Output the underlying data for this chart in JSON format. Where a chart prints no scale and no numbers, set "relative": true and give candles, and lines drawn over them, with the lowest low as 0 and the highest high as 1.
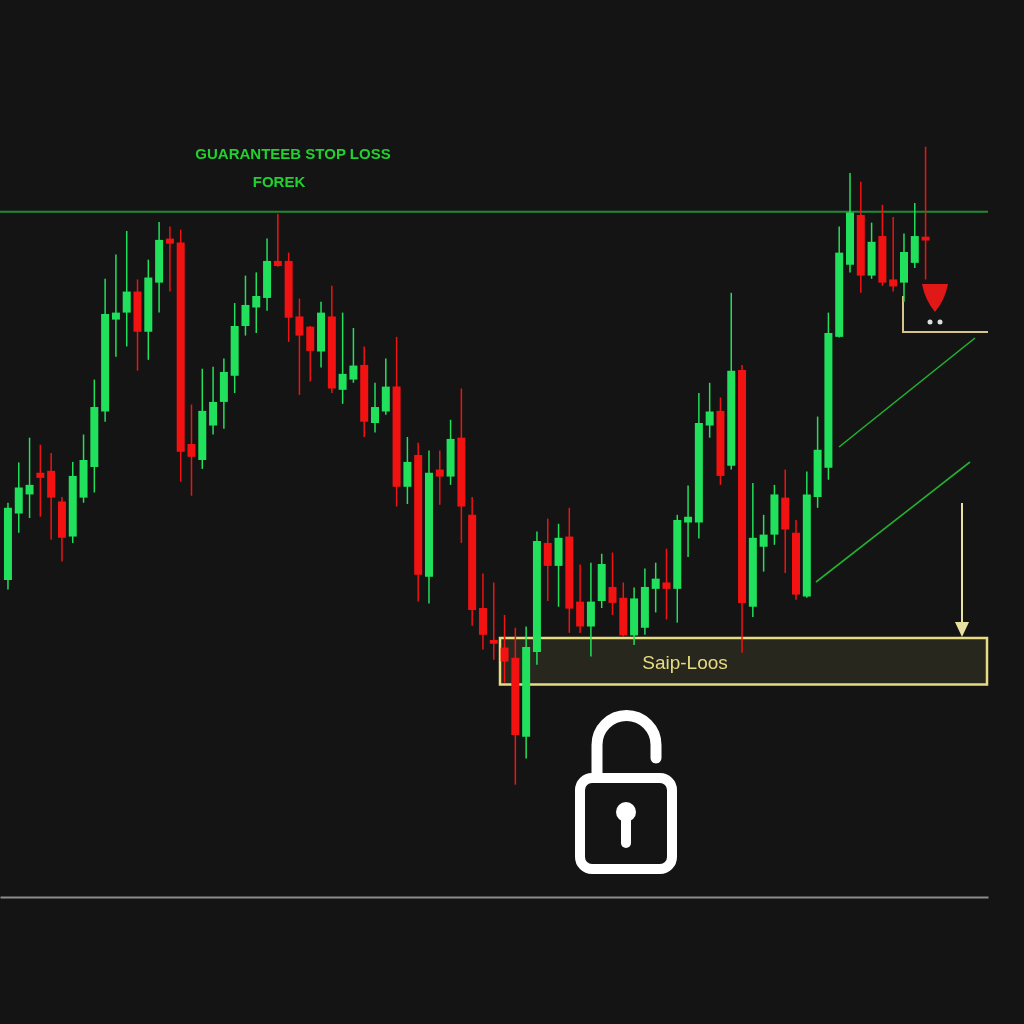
{
  "chart_data": {
    "type": "candlestick",
    "title": "GUARANTEEB STOP LOSS",
    "subtitle": "FOREK",
    "relative": true,
    "categories": [
      null,
      null,
      null,
      null,
      null,
      null,
      null,
      null,
      null,
      null,
      null,
      null,
      null,
      null,
      null,
      null,
      null,
      null,
      null,
      null,
      null,
      null,
      null,
      null,
      null,
      null,
      null,
      null,
      null,
      null,
      null,
      null,
      null,
      null,
      null,
      null,
      null,
      null,
      null,
      null,
      null,
      null,
      null,
      null,
      null,
      null,
      null,
      null,
      null,
      null,
      null,
      null,
      null,
      null,
      null,
      null,
      null,
      null,
      null,
      null,
      null,
      null,
      null,
      null,
      null,
      null,
      null,
      null,
      null,
      null,
      null,
      null,
      null,
      null,
      null,
      null,
      null,
      null,
      null,
      null,
      null,
      null,
      null,
      null,
      null,
      null
    ],
    "ohlc": [
      [
        0.321,
        0.442,
        0.306,
        0.434
      ],
      [
        0.425,
        0.505,
        0.395,
        0.466
      ],
      [
        0.455,
        0.544,
        0.418,
        0.47
      ],
      [
        0.489,
        0.533,
        0.42,
        0.481
      ],
      [
        0.492,
        0.52,
        0.384,
        0.45
      ],
      [
        0.444,
        0.451,
        0.35,
        0.387
      ],
      [
        0.389,
        0.506,
        0.379,
        0.484
      ],
      [
        0.45,
        0.549,
        0.442,
        0.509
      ],
      [
        0.498,
        0.635,
        0.458,
        0.592
      ],
      [
        0.585,
        0.793,
        0.569,
        0.738
      ],
      [
        0.729,
        0.831,
        0.671,
        0.74
      ],
      [
        0.74,
        0.868,
        0.687,
        0.773
      ],
      [
        0.773,
        0.792,
        0.649,
        0.71
      ],
      [
        0.71,
        0.823,
        0.666,
        0.795
      ],
      [
        0.787,
        0.882,
        0.74,
        0.854
      ],
      [
        0.856,
        0.875,
        0.773,
        0.848
      ],
      [
        0.85,
        0.87,
        0.475,
        0.522
      ],
      [
        0.534,
        0.596,
        0.453,
        0.514
      ],
      [
        0.509,
        0.652,
        0.495,
        0.586
      ],
      [
        0.563,
        0.655,
        0.549,
        0.6
      ],
      [
        0.6,
        0.668,
        0.558,
        0.647
      ],
      [
        0.641,
        0.755,
        0.614,
        0.719
      ],
      [
        0.719,
        0.798,
        0.704,
        0.752
      ],
      [
        0.748,
        0.803,
        0.708,
        0.766
      ],
      [
        0.763,
        0.856,
        0.743,
        0.821
      ],
      [
        0.821,
        0.895,
        0.812,
        0.813
      ],
      [
        0.821,
        0.834,
        0.694,
        0.732
      ],
      [
        0.734,
        0.762,
        0.611,
        0.704
      ],
      [
        0.718,
        0.719,
        0.632,
        0.68
      ],
      [
        0.679,
        0.757,
        0.654,
        0.74
      ],
      [
        0.734,
        0.782,
        0.614,
        0.621
      ],
      [
        0.619,
        0.74,
        0.597,
        0.644
      ],
      [
        0.635,
        0.716,
        0.63,
        0.657
      ],
      [
        0.658,
        0.687,
        0.545,
        0.569
      ],
      [
        0.567,
        0.63,
        0.552,
        0.592
      ],
      [
        0.585,
        0.668,
        0.58,
        0.624
      ],
      [
        0.624,
        0.702,
        0.436,
        0.467
      ],
      [
        0.467,
        0.545,
        0.44,
        0.506
      ],
      [
        0.517,
        0.536,
        0.287,
        0.329
      ],
      [
        0.326,
        0.524,
        0.284,
        0.489
      ],
      [
        0.494,
        0.524,
        0.439,
        0.483
      ],
      [
        0.483,
        0.572,
        0.47,
        0.542
      ],
      [
        0.544,
        0.621,
        0.379,
        0.436
      ],
      [
        0.423,
        0.451,
        0.249,
        0.274
      ],
      [
        0.277,
        0.331,
        0.212,
        0.235
      ],
      [
        0.227,
        0.317,
        0.196,
        0.221
      ],
      [
        0.215,
        0.266,
        0.16,
        0.193
      ],
      [
        0.199,
        0.246,
        0,
        0.078
      ],
      [
        0.075,
        0.248,
        0.041,
        0.216
      ],
      [
        0.208,
        0.397,
        0.188,
        0.382
      ],
      [
        0.379,
        0.417,
        0.288,
        0.343
      ],
      [
        0.343,
        0.409,
        0.279,
        0.387
      ],
      [
        0.389,
        0.434,
        0.238,
        0.276
      ],
      [
        0.287,
        0.345,
        0.238,
        0.248
      ],
      [
        0.248,
        0.348,
        0.201,
        0.287
      ],
      [
        0.288,
        0.362,
        0.277,
        0.346
      ],
      [
        0.31,
        0.364,
        0.266,
        0.285
      ],
      [
        0.293,
        0.317,
        0.232,
        0.234
      ],
      [
        0.234,
        0.309,
        0.219,
        0.292
      ],
      [
        0.246,
        0.339,
        0.235,
        0.31
      ],
      [
        0.307,
        0.348,
        0.27,
        0.323
      ],
      [
        0.317,
        0.37,
        0.259,
        0.307
      ],
      [
        0.307,
        0.423,
        0.254,
        0.415
      ],
      [
        0.411,
        0.469,
        0.357,
        0.42
      ],
      [
        0.411,
        0.614,
        0.386,
        0.567
      ],
      [
        0.563,
        0.63,
        0.544,
        0.585
      ],
      [
        0.586,
        0.607,
        0.47,
        0.484
      ],
      [
        0.5,
        0.771,
        0.494,
        0.649
      ],
      [
        0.65,
        0.658,
        0.207,
        0.285
      ],
      [
        0.279,
        0.473,
        0.263,
        0.387
      ],
      [
        0.373,
        0.423,
        0.334,
        0.392
      ],
      [
        0.392,
        0.47,
        0.376,
        0.455
      ],
      [
        0.45,
        0.494,
        0.332,
        0.4
      ],
      [
        0.395,
        0.415,
        0.29,
        0.298
      ],
      [
        0.295,
        0.491,
        0.293,
        0.455
      ],
      [
        0.451,
        0.577,
        0.434,
        0.525
      ],
      [
        0.497,
        0.74,
        0.478,
        0.708
      ],
      [
        0.702,
        0.875,
        0.701,
        0.834
      ],
      [
        0.815,
        0.959,
        0.803,
        0.897
      ],
      [
        0.893,
        0.945,
        0.771,
        0.798
      ],
      [
        0.798,
        0.881,
        0.793,
        0.851
      ],
      [
        0.86,
        0.909,
        0.782,
        0.787
      ],
      [
        0.792,
        0.89,
        0.773,
        0.781
      ],
      [
        0.787,
        0.864,
        0.757,
        0.835
      ],
      [
        0.818,
        0.912,
        0.81,
        0.86
      ],
      [
        0.859,
        1,
        0.792,
        0.853
      ]
    ],
    "colors": [
      "#21e05b",
      "#21e05b",
      "#21e05b",
      "#f31212",
      "#f31212",
      "#f31212",
      "#21e05b",
      "#21e05b",
      "#21e05b",
      "#21e05b",
      "#21e05b",
      "#21e05b",
      "#f31212",
      "#21e05b",
      "#21e05b",
      "#f31212",
      "#f31212",
      "#f31212",
      "#21e05b",
      "#21e05b",
      "#21e05b",
      "#21e05b",
      "#21e05b",
      "#21e05b",
      "#21e05b",
      "#f31212",
      "#f31212",
      "#f31212",
      "#f31212",
      "#21e05b",
      "#f31212",
      "#21e05b",
      "#21e05b",
      "#f31212",
      "#21e05b",
      "#21e05b",
      "#f31212",
      "#21e05b",
      "#f31212",
      "#21e05b",
      "#f31212",
      "#21e05b",
      "#f31212",
      "#f31212",
      "#f31212",
      "#f31212",
      "#f31212",
      "#f31212",
      "#21e05b",
      "#21e05b",
      "#f31212",
      "#21e05b",
      "#f31212",
      "#f31212",
      "#21e05b",
      "#21e05b",
      "#f31212",
      "#f31212",
      "#21e05b",
      "#21e05b",
      "#21e05b",
      "#f31212",
      "#21e05b",
      "#21e05b",
      "#21e05b",
      "#21e05b",
      "#f31212",
      "#21e05b",
      "#f31212",
      "#21e05b",
      "#21e05b",
      "#21e05b",
      "#f31212",
      "#f31212",
      "#21e05b",
      "#21e05b",
      "#21e05b",
      "#21e05b",
      "#21e05b",
      "#f31212",
      "#21e05b",
      "#f31212",
      "#f31212",
      "#21e05b",
      "#21e05b",
      "#f31212"
    ],
    "ref_lines": [
      {
        "axis": "y",
        "value": 0.898,
        "color": "#1f8a34"
      }
    ],
    "bands": [
      {
        "axis": "y",
        "from": 0.157,
        "to": 0.23,
        "label": "Saip-Loos",
        "color": "#e6dc82"
      }
    ]
  }
}
